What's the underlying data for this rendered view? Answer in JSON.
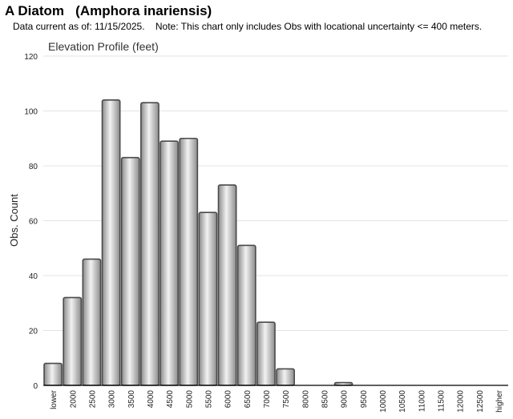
{
  "header": {
    "title": "A Diatom   (Amphora inariensis)",
    "note": "Data current as of: 11/15/2025.    Note: This chart only includes Obs with locational uncertainty <= 400 meters."
  },
  "chart_data": {
    "type": "bar",
    "title": "Elevation Profile (feet)",
    "xlabel": "",
    "ylabel": "Obs. Count",
    "ylim": [
      0,
      120
    ],
    "yticks": [
      0,
      20,
      40,
      60,
      80,
      100,
      120
    ],
    "grid": true,
    "categories": [
      "lower",
      "2000",
      "2500",
      "3000",
      "3500",
      "4000",
      "4500",
      "5000",
      "5500",
      "6000",
      "6500",
      "7000",
      "7500",
      "8000",
      "8500",
      "9000",
      "9500",
      "10000",
      "10500",
      "11000",
      "11500",
      "12000",
      "12500",
      "higher"
    ],
    "values": [
      8,
      32,
      46,
      104,
      83,
      103,
      89,
      90,
      63,
      73,
      51,
      23,
      6,
      0,
      0,
      1,
      0,
      0,
      0,
      0,
      0,
      0,
      0,
      0
    ]
  },
  "colors": {
    "bar_edge": "#4a4a4a",
    "bar_light": "#f2f2f2",
    "bar_dark": "#8c8c8c",
    "grid": "#e3e3e3",
    "axis": "#000000"
  }
}
